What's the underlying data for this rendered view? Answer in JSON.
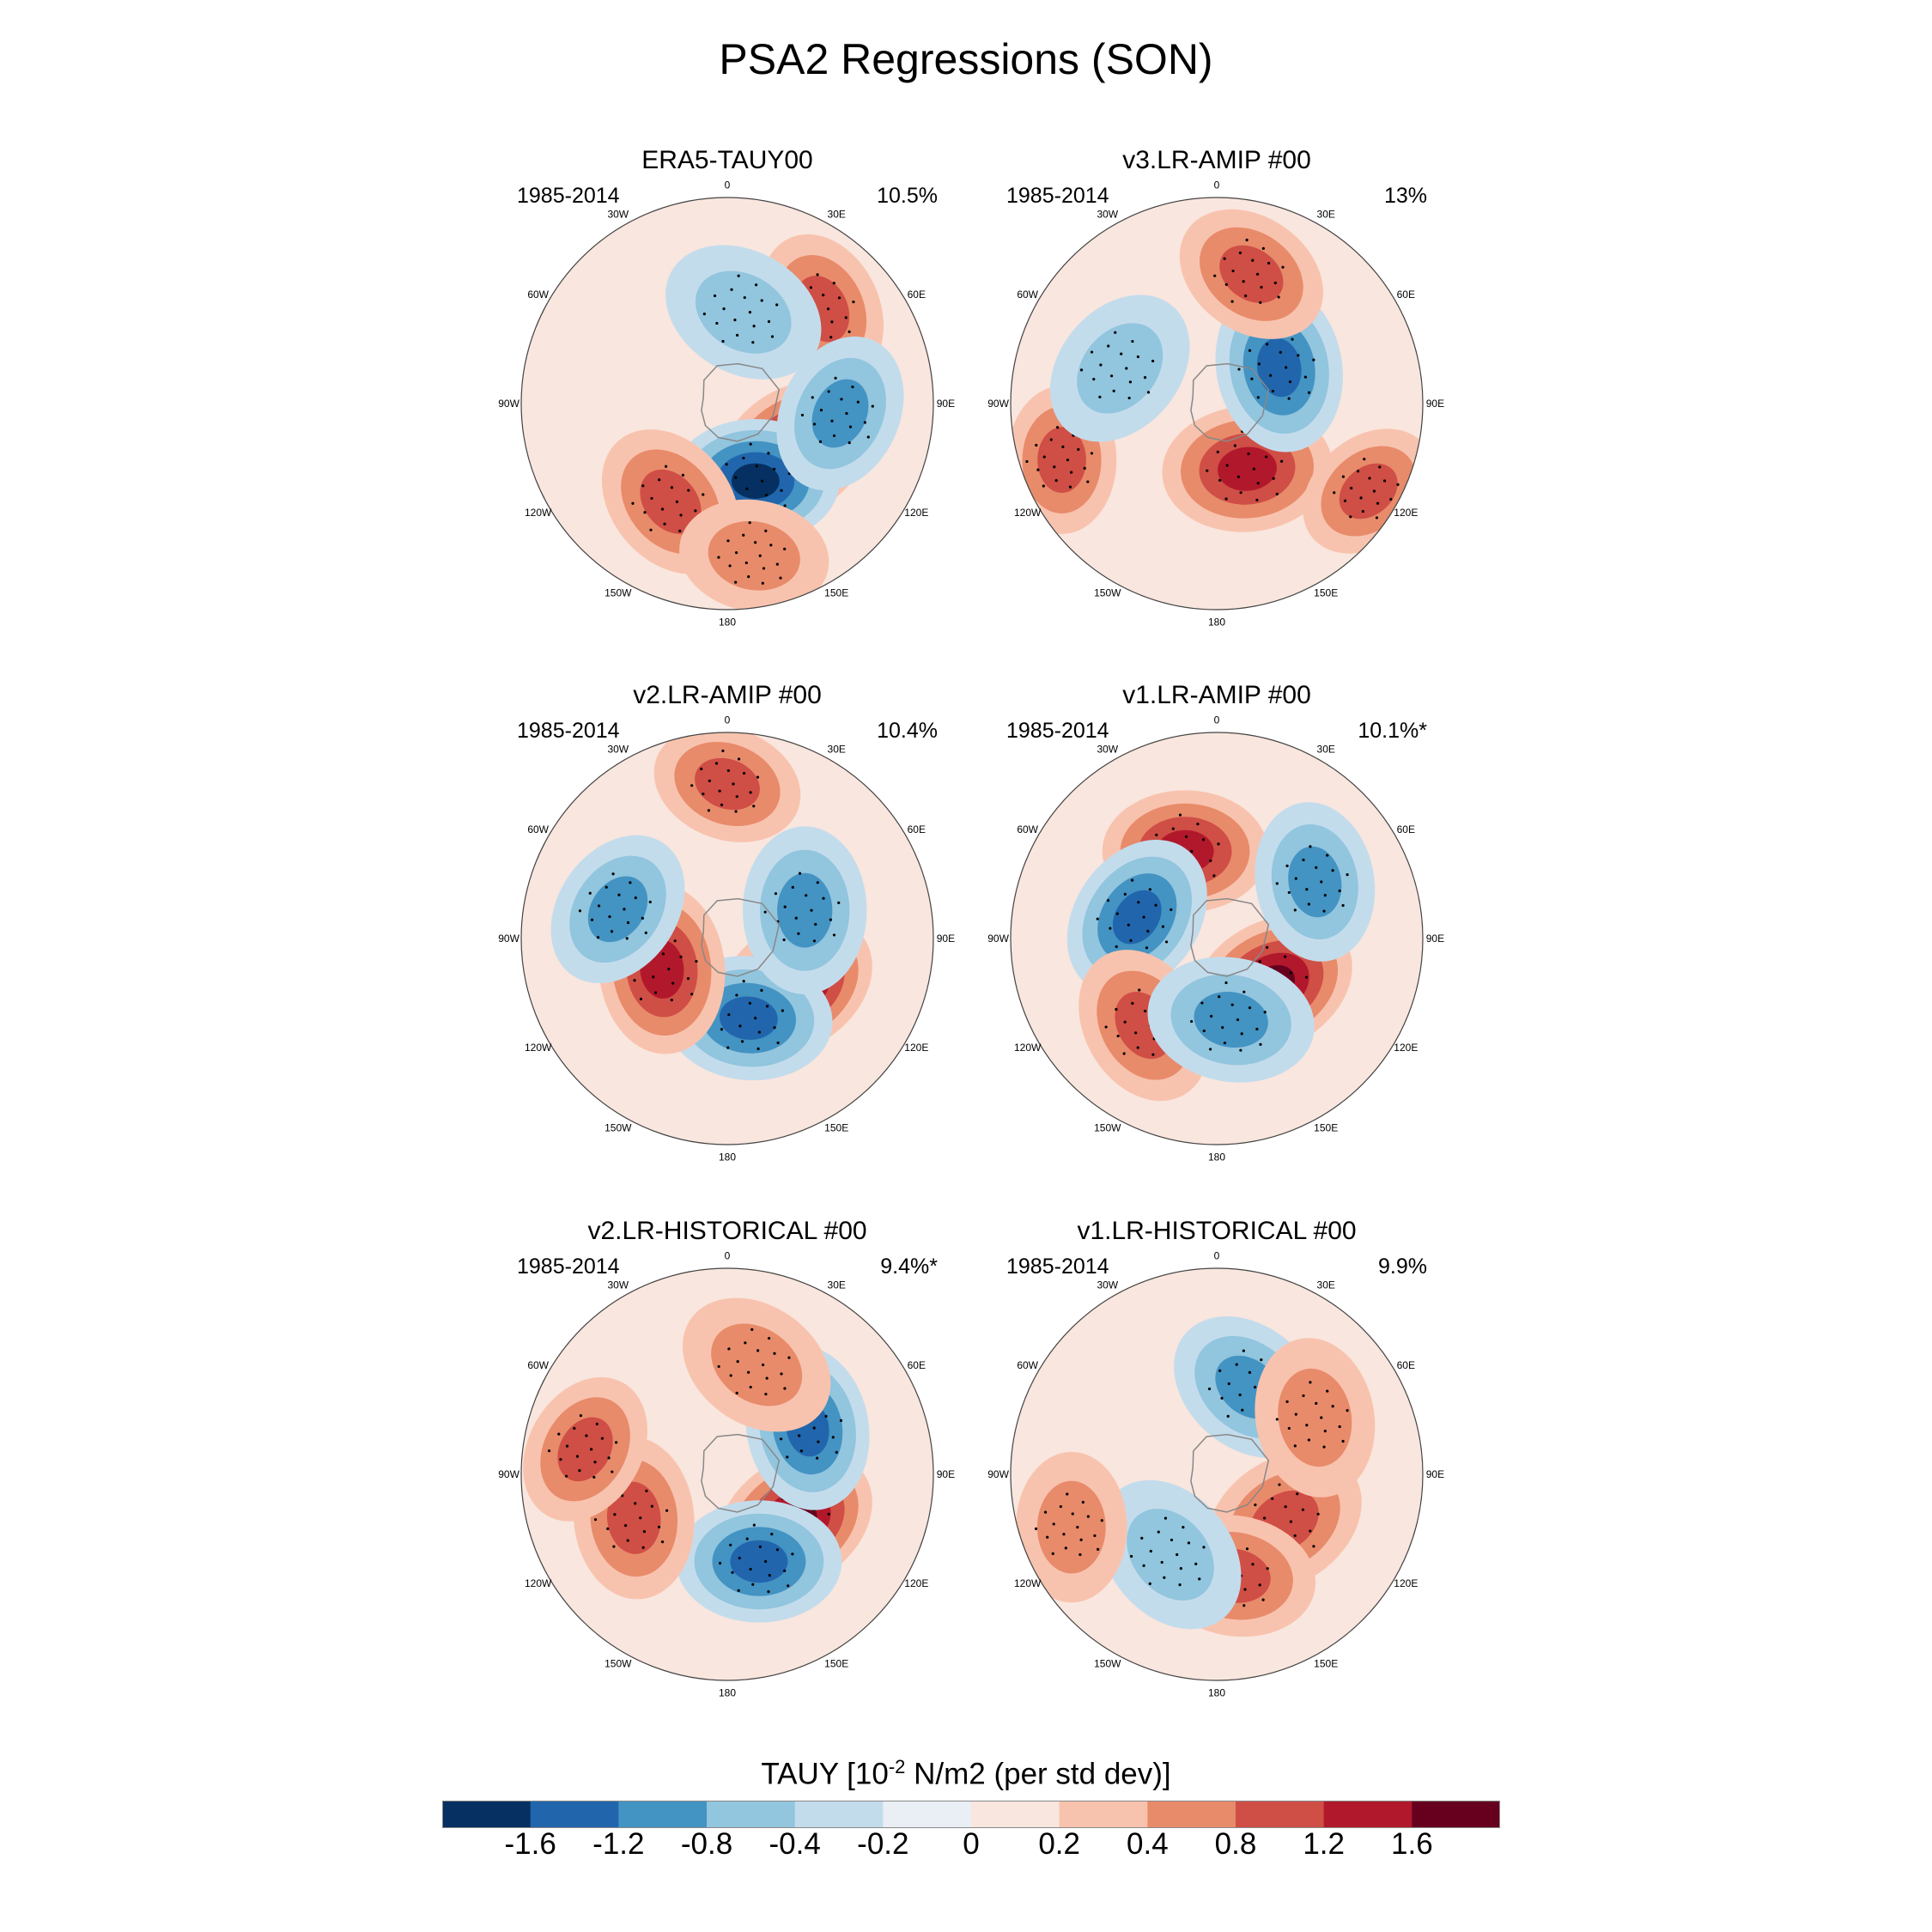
{
  "title": "PSA2 Regressions (SON)",
  "colors": {
    "levels": [
      "#053061",
      "#2166ac",
      "#4393c3",
      "#92c5de",
      "#c3dcec",
      "#e9eff4",
      "#f9e6de",
      "#f8c3ae",
      "#e88b6b",
      "#cf4e45",
      "#b2182b",
      "#67001f"
    ]
  },
  "longitude_labels": [
    "0",
    "30E",
    "60E",
    "90E",
    "120E",
    "150E",
    "180",
    "150W",
    "120W",
    "90W",
    "60W",
    "30W"
  ],
  "panels": [
    {
      "title": "ERA5-TAUY00",
      "years": "1985-2014",
      "percent": "10.5%"
    },
    {
      "title": "v3.LR-AMIP  #00",
      "years": "1985-2014",
      "percent": "13%"
    },
    {
      "title": "v2.LR-AMIP  #00",
      "years": "1985-2014",
      "percent": "10.4%"
    },
    {
      "title": "v1.LR-AMIP  #00",
      "years": "1985-2014",
      "percent": "10.1%*"
    },
    {
      "title": "v2.LR-HISTORICAL  #00",
      "years": "1985-2014",
      "percent": "9.4%*"
    },
    {
      "title": "v1.LR-HISTORICAL  #00",
      "years": "1985-2014",
      "percent": "9.9%"
    }
  ],
  "colorbar": {
    "title_main": "TAUY [10",
    "title_sup": "-2",
    "title_rest": " N/m2 (per std dev)]",
    "tick_labels": [
      "-1.6",
      "-1.2",
      "-0.8",
      "-0.4",
      "-0.2",
      "0",
      "0.2",
      "0.4",
      "0.8",
      "1.2",
      "1.6"
    ]
  },
  "chart_data": {
    "type": "heatmap",
    "title": "PSA2 Regressions (SON)",
    "variable": "TAUY [10^-2 N/m2 (per std dev)]",
    "projection": "south polar stereographic",
    "colorbar_levels": [
      -1.6,
      -1.2,
      -0.8,
      -0.4,
      -0.2,
      0,
      0.2,
      0.4,
      0.8,
      1.2,
      1.6
    ],
    "panels": [
      {
        "name": "ERA5-TAUY00",
        "period": "1985-2014",
        "variance_explained": "10.5%",
        "anomalies": [
          {
            "lon": 125,
            "r": 0.4,
            "value": 1.6
          },
          {
            "lon": 160,
            "r": 0.4,
            "value": -1.6
          },
          {
            "lon": 45,
            "r": 0.65,
            "value": 0.8
          },
          {
            "lon": 95,
            "r": 0.55,
            "value": -0.8
          },
          {
            "lon": -150,
            "r": 0.55,
            "value": 0.8
          },
          {
            "lon": 170,
            "r": 0.75,
            "value": 0.4
          },
          {
            "lon": 10,
            "r": 0.45,
            "value": -0.4
          }
        ]
      },
      {
        "name": "v3.LR-AMIP  #00",
        "period": "1985-2014",
        "variance_explained": "13%",
        "anomalies": [
          {
            "lon": 155,
            "r": 0.35,
            "value": 1.2
          },
          {
            "lon": 60,
            "r": 0.35,
            "value": -1.2
          },
          {
            "lon": 15,
            "r": 0.65,
            "value": 0.8
          },
          {
            "lon": 120,
            "r": 0.85,
            "value": 0.8
          },
          {
            "lon": -110,
            "r": 0.8,
            "value": 0.8
          },
          {
            "lon": -70,
            "r": 0.5,
            "value": -0.4
          }
        ]
      },
      {
        "name": "v2.LR-AMIP  #00",
        "period": "1985-2014",
        "variance_explained": "10.4%",
        "anomalies": [
          {
            "lon": 125,
            "r": 0.4,
            "value": 1.6
          },
          {
            "lon": 165,
            "r": 0.4,
            "value": -1.2
          },
          {
            "lon": 70,
            "r": 0.4,
            "value": -0.8
          },
          {
            "lon": -115,
            "r": 0.35,
            "value": 1.2
          },
          {
            "lon": -75,
            "r": 0.55,
            "value": -0.8
          },
          {
            "lon": 0,
            "r": 0.75,
            "value": 0.8
          }
        ]
      },
      {
        "name": "v1.LR-AMIP  #00",
        "period": "1985-2014",
        "variance_explained": "10.1%*",
        "anomalies": [
          {
            "lon": 130,
            "r": 0.35,
            "value": 1.6
          },
          {
            "lon": -20,
            "r": 0.45,
            "value": 1.2
          },
          {
            "lon": -75,
            "r": 0.4,
            "value": -1.2
          },
          {
            "lon": -140,
            "r": 0.55,
            "value": 0.8
          },
          {
            "lon": 170,
            "r": 0.4,
            "value": -0.8
          },
          {
            "lon": 60,
            "r": 0.55,
            "value": -0.8
          }
        ]
      },
      {
        "name": "v2.LR-HISTORICAL  #00",
        "period": "1985-2014",
        "variance_explained": "9.4%*",
        "anomalies": [
          {
            "lon": 125,
            "r": 0.4,
            "value": 1.6
          },
          {
            "lon": 160,
            "r": 0.45,
            "value": -1.2
          },
          {
            "lon": 60,
            "r": 0.45,
            "value": -1.2
          },
          {
            "lon": -115,
            "r": 0.5,
            "value": 0.8
          },
          {
            "lon": 15,
            "r": 0.55,
            "value": 0.4
          },
          {
            "lon": -80,
            "r": 0.7,
            "value": 0.8
          }
        ]
      },
      {
        "name": "v1.LR-HISTORICAL  #00",
        "period": "1985-2014",
        "variance_explained": "9.9%",
        "anomalies": [
          {
            "lon": 125,
            "r": 0.4,
            "value": 0.8
          },
          {
            "lon": 170,
            "r": 0.5,
            "value": 0.8
          },
          {
            "lon": -150,
            "r": 0.45,
            "value": -0.4
          },
          {
            "lon": 20,
            "r": 0.45,
            "value": -0.8
          },
          {
            "lon": -110,
            "r": 0.75,
            "value": 0.4
          },
          {
            "lon": 60,
            "r": 0.55,
            "value": 0.4
          }
        ]
      }
    ]
  }
}
